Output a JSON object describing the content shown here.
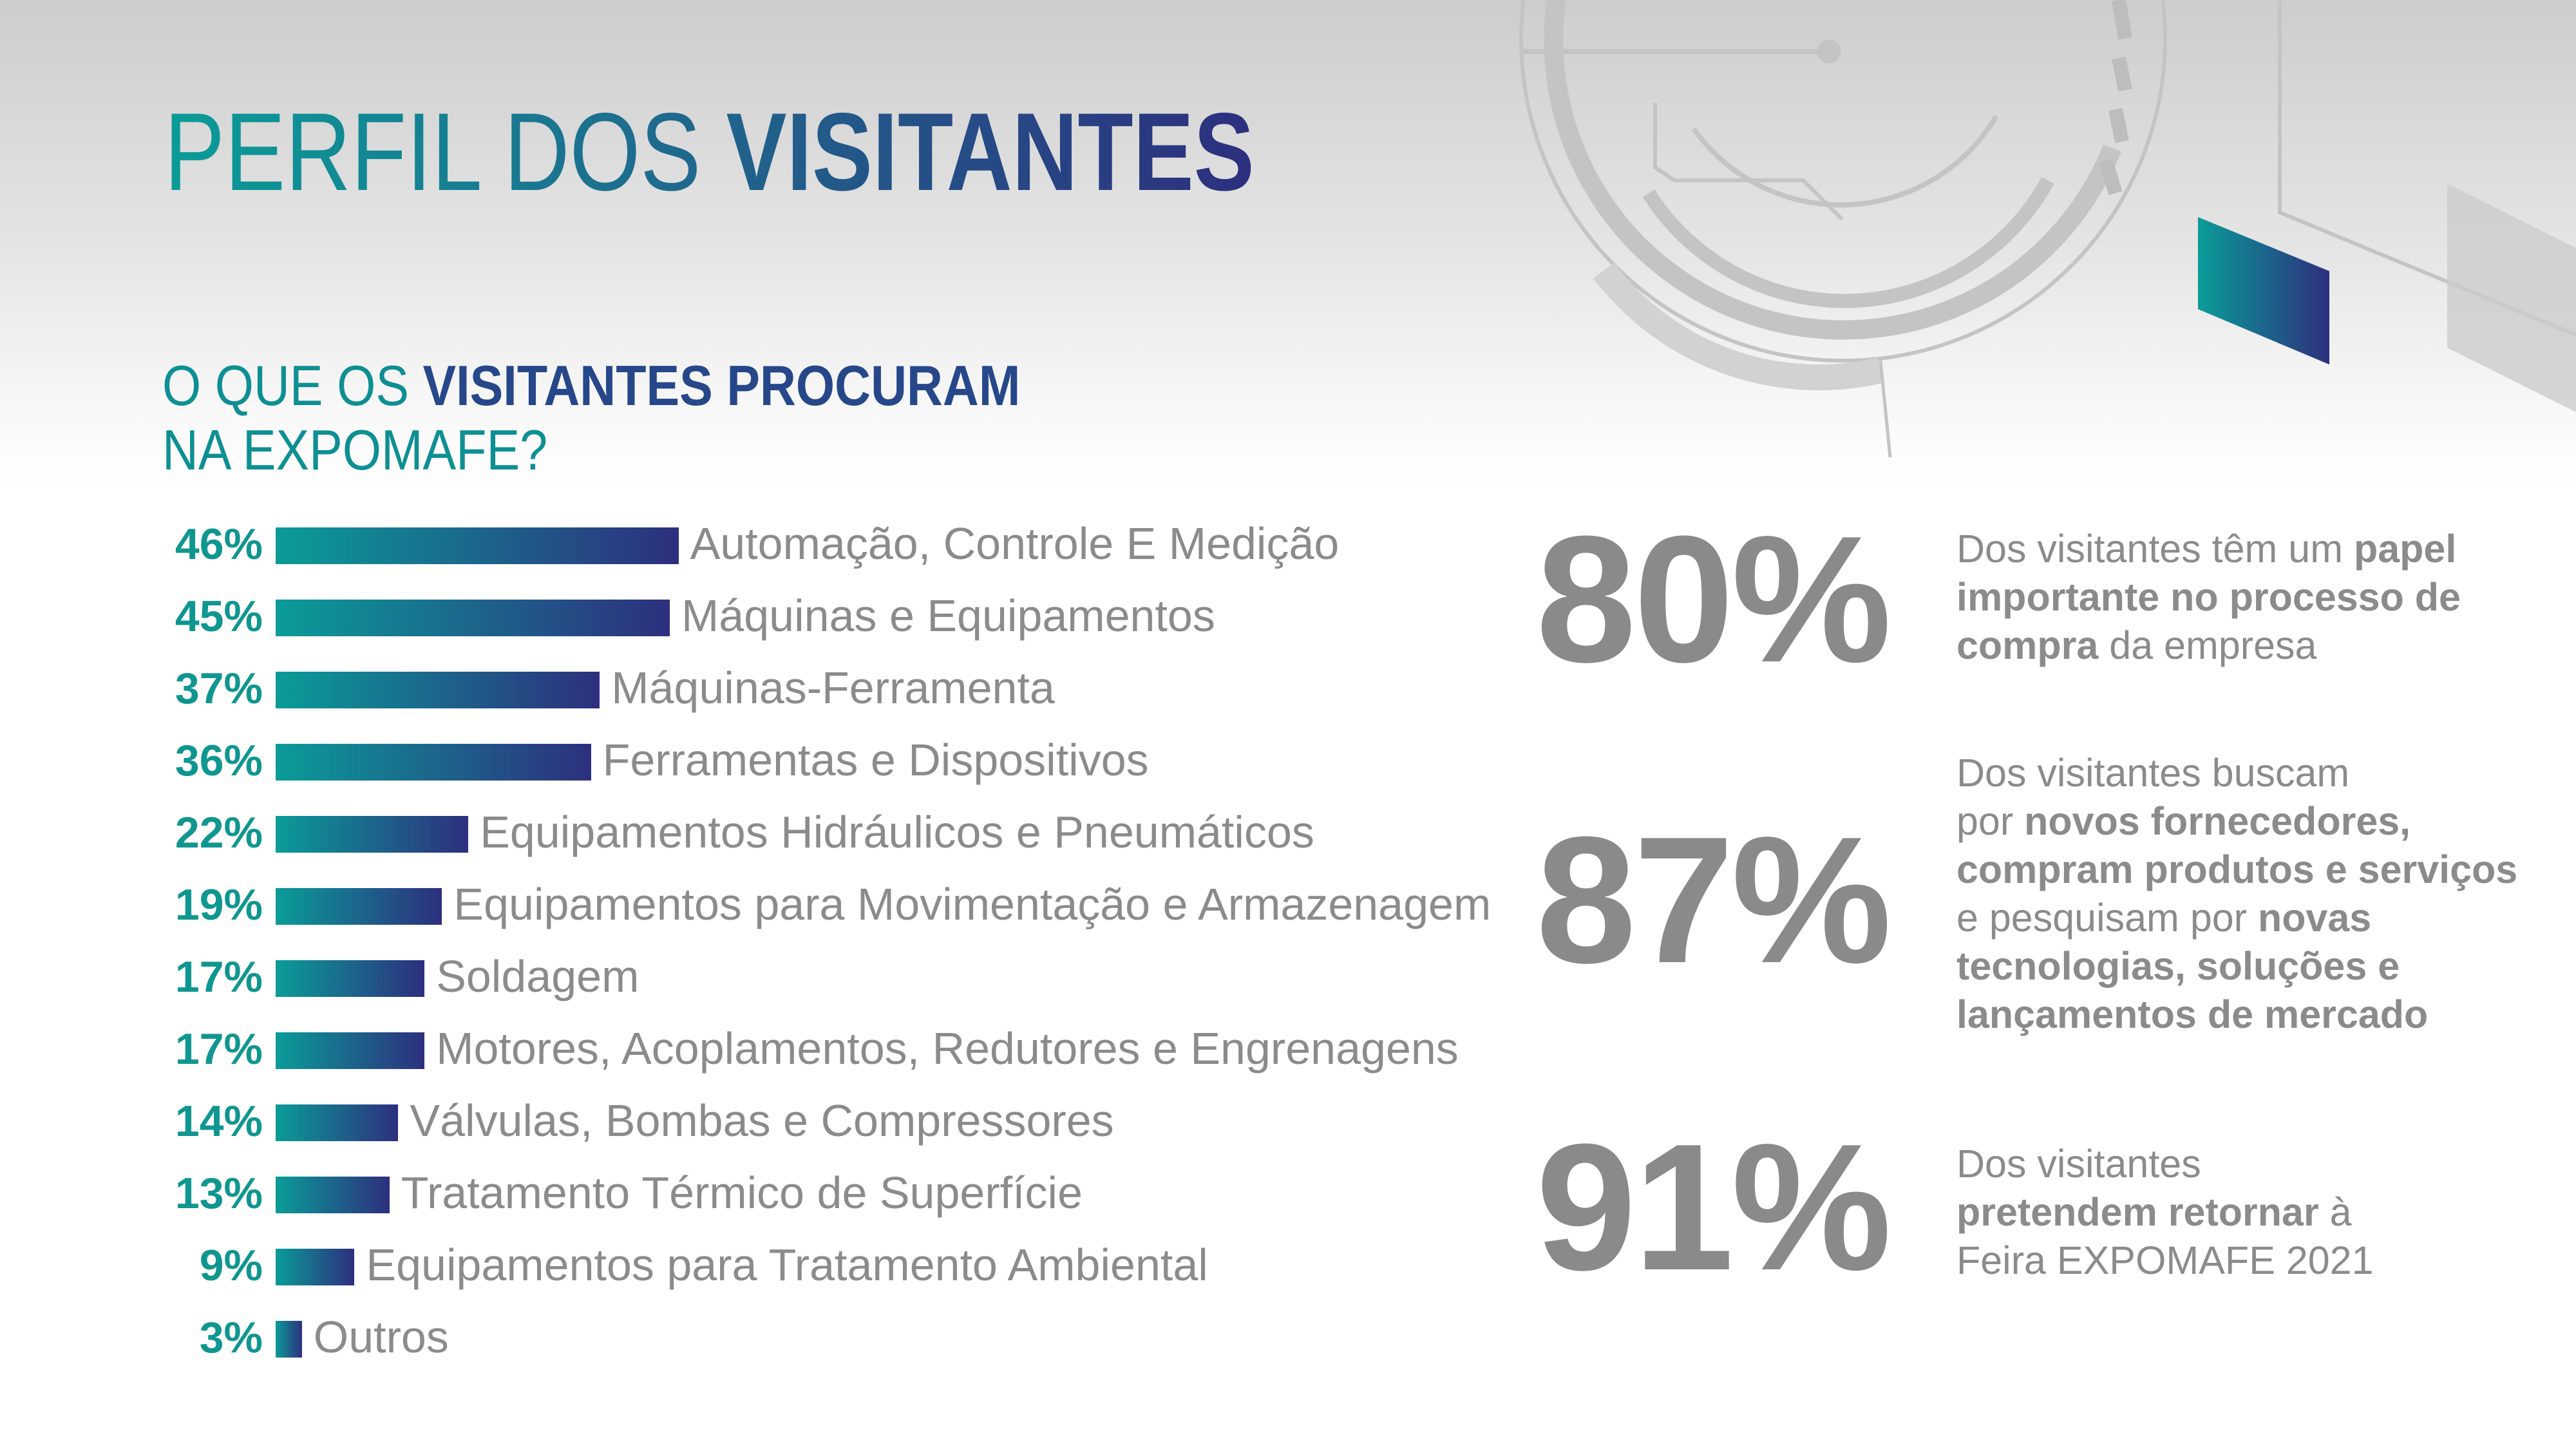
{
  "title": {
    "regular": "PERFIL DOS ",
    "bold": "VISITANTES"
  },
  "subtitle": {
    "line1_regular": "O QUE OS ",
    "line1_bold": "VISITANTES PROCURAM",
    "line2": "NA EXPOMAFE?"
  },
  "colors": {
    "teal": "#0a9c98",
    "indigo": "#2d2f7e",
    "gray": "#8b8b8b"
  },
  "chart_data": {
    "type": "bar",
    "orientation": "horizontal",
    "title": "O QUE OS VISITANTES PROCURAM NA EXPOMAFE?",
    "categories": [
      "Automação, Controle E Medição",
      "Máquinas e Equipamentos",
      "Máquinas-Ferramenta",
      "Ferramentas e Dispositivos",
      "Equipamentos Hidráulicos e Pneumáticos",
      "Equipamentos para Movimentação e Armazenagem",
      "Soldagem",
      "Motores, Acoplamentos, Redutores e Engrenagens",
      "Válvulas, Bombas e Compressores",
      "Tratamento Térmico de Superfície",
      "Equipamentos para Tratamento Ambiental",
      "Outros"
    ],
    "values": [
      46,
      45,
      37,
      36,
      22,
      19,
      17,
      17,
      14,
      13,
      9,
      3
    ],
    "value_labels": [
      "46%",
      "45%",
      "37%",
      "36%",
      "22%",
      "19%",
      "17%",
      "17%",
      "14%",
      "13%",
      "9%",
      "3%"
    ],
    "unit": "%"
  },
  "stats": [
    {
      "value": "80%",
      "lines": [
        [
          {
            "t": "Dos visitantes têm um ",
            "b": false
          },
          {
            "t": "papel",
            "b": true
          }
        ],
        [
          {
            "t": "importante no processo de",
            "b": true
          }
        ],
        [
          {
            "t": "compra",
            "b": true
          },
          {
            "t": " da empresa",
            "b": false
          }
        ]
      ]
    },
    {
      "value": "87%",
      "lines": [
        [
          {
            "t": "Dos visitantes buscam",
            "b": false
          }
        ],
        [
          {
            "t": "por ",
            "b": false
          },
          {
            "t": "novos fornecedores,",
            "b": true
          }
        ],
        [
          {
            "t": "compram produtos e serviços",
            "b": true
          }
        ],
        [
          {
            "t": "e pesquisam por ",
            "b": false
          },
          {
            "t": "novas",
            "b": true
          }
        ],
        [
          {
            "t": "tecnologias, soluções e",
            "b": true
          }
        ],
        [
          {
            "t": "lançamentos de mercado",
            "b": true
          }
        ]
      ]
    },
    {
      "value": "91%",
      "lines": [
        [
          {
            "t": "Dos visitantes",
            "b": false
          }
        ],
        [
          {
            "t": "pretendem retornar",
            "b": true
          },
          {
            "t": " à",
            "b": false
          }
        ],
        [
          {
            "t": "Feira EXPOMAFE 2021",
            "b": false
          }
        ]
      ]
    }
  ]
}
